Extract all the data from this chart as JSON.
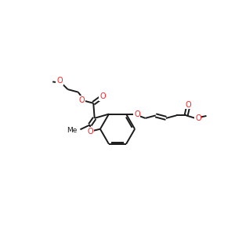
{
  "bg_color": "#ffffff",
  "bond_color": "#1a1a1a",
  "heteroatom_color": "#ff2020",
  "bond_width": 1.4,
  "figsize": [
    3.0,
    3.0
  ],
  "dpi": 100,
  "xlim": [
    0,
    10
  ],
  "ylim": [
    2,
    8
  ]
}
